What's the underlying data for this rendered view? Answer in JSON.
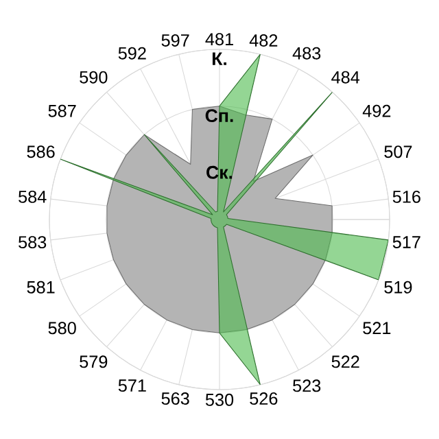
{
  "chart_data": {
    "type": "radar",
    "categories": [
      "481",
      "482",
      "483",
      "484",
      "492",
      "507",
      "516",
      "517",
      "519",
      "521",
      "522",
      "523",
      "526",
      "530",
      "563",
      "571",
      "579",
      "580",
      "581",
      "583",
      "584",
      "586",
      "587",
      "590",
      "592",
      "597"
    ],
    "series": [
      {
        "color": "#b4b4b4",
        "values": [
          2.0,
          1.9,
          2.0,
          0.9,
          2.0,
          1.05,
          2.0,
          2.0,
          2.0,
          2.0,
          2.0,
          2.0,
          2.0,
          2.0,
          2.0,
          2.0,
          2.0,
          2.0,
          2.0,
          2.0,
          2.0,
          2.0,
          2.0,
          2.0,
          1.1,
          2.0
        ]
      },
      {
        "color": "#4cbb4c",
        "values": [
          2.0,
          3.0,
          0.15,
          3.0,
          0.15,
          0.15,
          0.15,
          3.0,
          3.0,
          0.15,
          0.15,
          0.15,
          3.0,
          2.0,
          0.15,
          0.15,
          0.15,
          0.15,
          0.15,
          0.15,
          0.15,
          3.0,
          0.15,
          2.0,
          0.15,
          0.15
        ]
      }
    ],
    "ylim": [
      0,
      3
    ],
    "yticks": [
      {
        "value": 1,
        "label": "Ск."
      },
      {
        "value": 2,
        "label": "Сп."
      },
      {
        "value": 3,
        "label": "К."
      }
    ],
    "grid": true
  }
}
